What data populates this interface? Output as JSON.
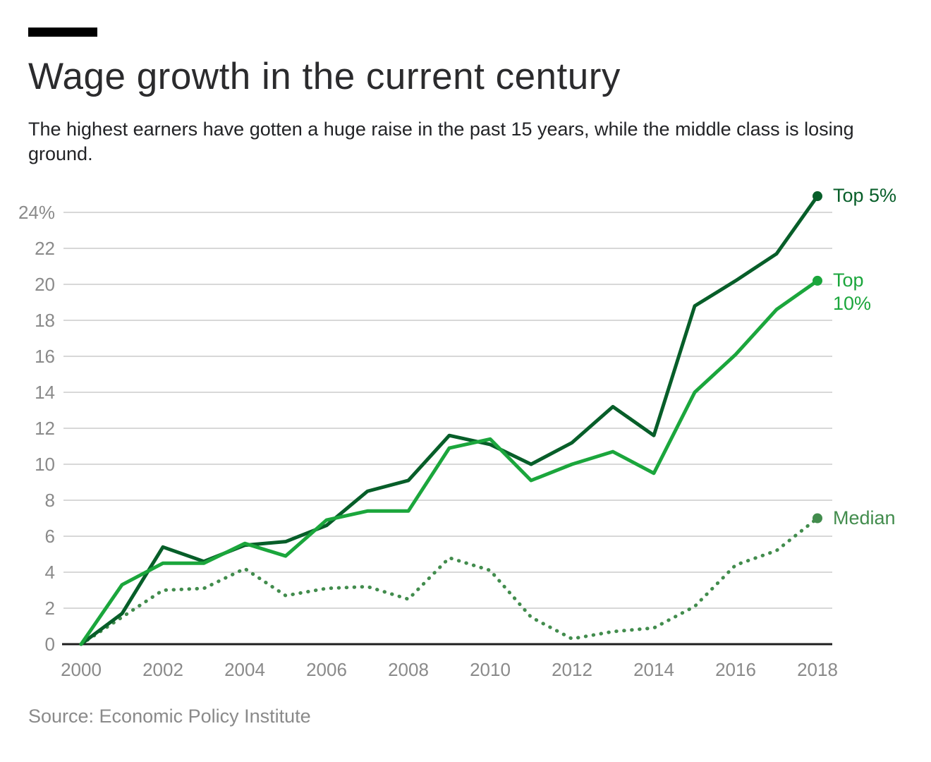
{
  "chart_data": {
    "type": "line",
    "title": "Wage growth in the current century",
    "subtitle": "The highest earners have gotten a huge raise in the past 15 years, while the middle class is losing ground.",
    "source": "Source: Economic Policy Institute",
    "x": [
      2000,
      2001,
      2002,
      2003,
      2004,
      2005,
      2006,
      2007,
      2008,
      2009,
      2010,
      2011,
      2012,
      2013,
      2014,
      2015,
      2016,
      2017,
      2018
    ],
    "x_tick_labels": [
      "2000",
      "2002",
      "2004",
      "2006",
      "2008",
      "2010",
      "2012",
      "2014",
      "2016",
      "2018"
    ],
    "y_tick_labels": [
      "0",
      "2",
      "4",
      "6",
      "8",
      "10",
      "12",
      "14",
      "16",
      "18",
      "20",
      "22",
      "24%"
    ],
    "ylim": [
      0,
      24
    ],
    "xlim": [
      2000,
      2018
    ],
    "grid": true,
    "legend_position": "end-of-line-labels",
    "series": [
      {
        "name": "Median",
        "end_label_lines": [
          "Median"
        ],
        "style": "dotted",
        "color": "#428c4d",
        "values": [
          0,
          1.5,
          3.0,
          3.1,
          4.2,
          2.7,
          3.1,
          3.2,
          2.5,
          4.8,
          4.1,
          1.5,
          0.3,
          0.7,
          0.9,
          2.1,
          4.4,
          5.2,
          7.0
        ]
      },
      {
        "name": "Top 5%",
        "end_label_lines": [
          "Top 5%"
        ],
        "style": "solid",
        "color": "#075e29",
        "values": [
          0,
          1.7,
          5.4,
          4.6,
          5.5,
          5.7,
          6.6,
          8.5,
          9.1,
          11.6,
          11.1,
          10.0,
          11.2,
          13.2,
          11.6,
          18.8,
          20.2,
          21.7,
          24.9
        ]
      },
      {
        "name": "Top 10%",
        "end_label_lines": [
          "Top",
          "10%"
        ],
        "style": "solid",
        "color": "#1ba63c",
        "values": [
          0,
          3.3,
          4.5,
          4.5,
          5.6,
          4.9,
          6.9,
          7.4,
          7.4,
          10.9,
          11.4,
          9.1,
          10.0,
          10.7,
          9.5,
          14.0,
          16.1,
          18.6,
          20.2
        ]
      }
    ]
  },
  "colors": {
    "title": "#2b2b2d",
    "subtitle": "#222326",
    "tick": "#8a8a8a",
    "grid": "#d8d8d8",
    "axis": "#1e1e1e",
    "source": "#8a8a8a",
    "kicker_bar": "#000000"
  }
}
